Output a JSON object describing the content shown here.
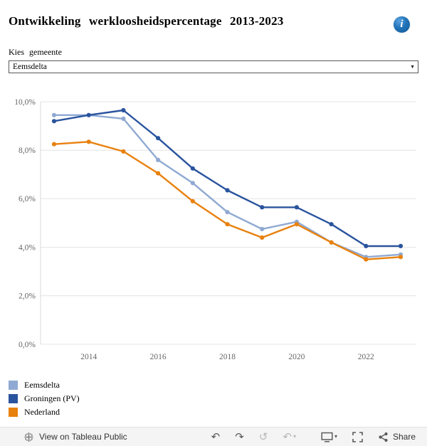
{
  "header": {
    "title": "Ontwikkeling werkloosheidspercentage 2013-2023"
  },
  "filter": {
    "label": "Kies gemeente",
    "value": "Eemsdelta"
  },
  "icons": {
    "info": "i",
    "dropdown_chevron": "▼",
    "undo": "↶",
    "redo": "↷",
    "replay": "↺",
    "revert": "↶",
    "caret": "▾"
  },
  "chart_data": {
    "type": "line",
    "title": "Ontwikkeling werkloosheidspercentage 2013-2023",
    "xlabel": "",
    "ylabel": "",
    "grid": true,
    "legend_position": "bottom-left",
    "x": [
      2013,
      2014,
      2015,
      2016,
      2017,
      2018,
      2019,
      2020,
      2021,
      2022,
      2023
    ],
    "series": [
      {
        "name": "Eemsdelta",
        "color": "#8FA9D2",
        "values": [
          9.45,
          9.45,
          9.3,
          7.6,
          6.65,
          5.45,
          4.75,
          5.05,
          4.2,
          3.6,
          3.7
        ]
      },
      {
        "name": "Groningen (PV)",
        "color": "#2A549E",
        "values": [
          9.2,
          9.45,
          9.65,
          8.5,
          7.25,
          6.35,
          5.65,
          5.65,
          4.95,
          4.05,
          4.05
        ]
      },
      {
        "name": "Nederland",
        "color": "#E8810E",
        "values": [
          8.25,
          8.35,
          7.95,
          7.05,
          5.9,
          4.95,
          4.4,
          4.95,
          4.2,
          3.5,
          3.6
        ]
      }
    ],
    "ylim": [
      0,
      10.5
    ],
    "ytick_values": [
      0,
      2,
      4,
      6,
      8,
      10
    ],
    "yticks": [
      "0,0%",
      "2,0%",
      "4,0%",
      "6,0%",
      "8,0%",
      "10,0%"
    ],
    "xticks": [
      2014,
      2016,
      2018,
      2020,
      2022
    ]
  },
  "legend": {
    "items": [
      {
        "label": "Eemsdelta",
        "color": "#8FA9D2"
      },
      {
        "label": "Groningen (PV)",
        "color": "#2A549E"
      },
      {
        "label": "Nederland",
        "color": "#E8810E"
      }
    ]
  },
  "footer": {
    "view_label": "View on Tableau Public",
    "share_label": "Share"
  }
}
